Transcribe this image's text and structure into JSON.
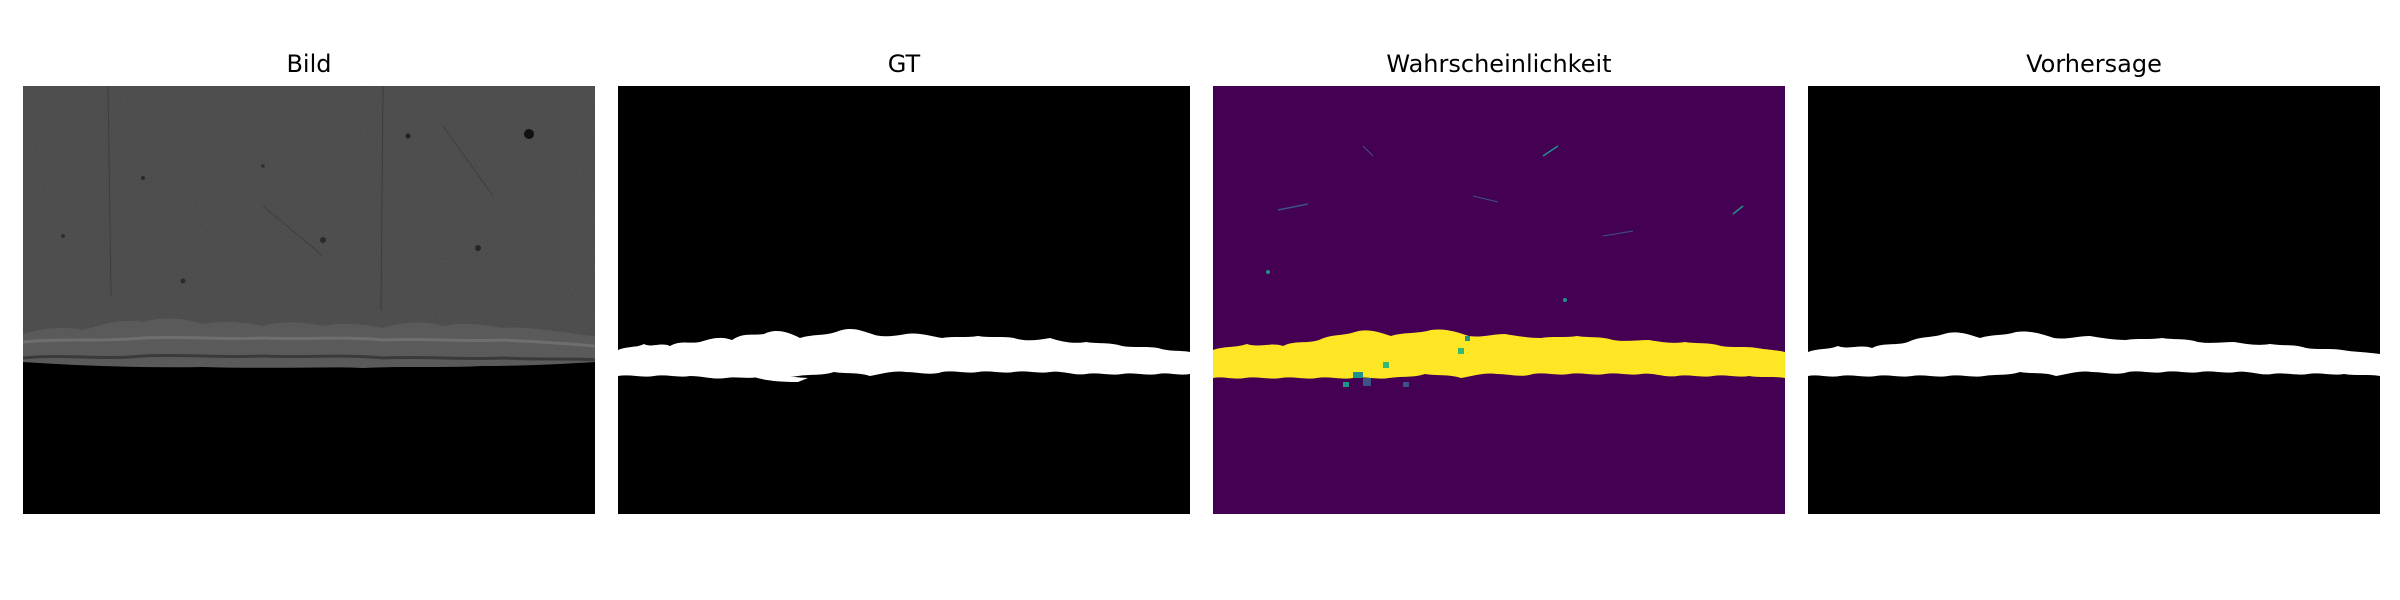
{
  "panels": [
    {
      "title": "Bild"
    },
    {
      "title": "GT"
    },
    {
      "title": "Wahrscheinlichkeit"
    },
    {
      "title": "Vorhersage"
    }
  ],
  "colors": {
    "background": "#ffffff",
    "image_top_gray": "#464646",
    "mask_background": "#000000",
    "mask_foreground": "#ffffff",
    "prob_low": "#440154",
    "prob_mid": "#21918c",
    "prob_high": "#fde725"
  }
}
